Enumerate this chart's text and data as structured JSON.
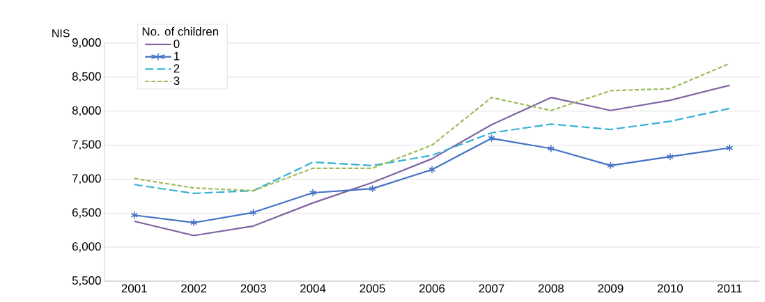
{
  "chart_data": {
    "type": "line",
    "ylabel": "NIS",
    "legend_title": "No. of children",
    "categories": [
      "2001",
      "2002",
      "2003",
      "2004",
      "2005",
      "2006",
      "2007",
      "2008",
      "2009",
      "2010",
      "2011"
    ],
    "series": [
      {
        "name": "0",
        "color": "#8064a2",
        "marker": "none",
        "line_style": "solid",
        "values": [
          6380,
          6170,
          6310,
          6650,
          6950,
          7300,
          7800,
          8200,
          8010,
          8160,
          8380
        ]
      },
      {
        "name": "1",
        "color": "#4472c4",
        "marker": "cross",
        "line_style": "solid",
        "values": [
          6470,
          6360,
          6510,
          6800,
          6860,
          7140,
          7600,
          7450,
          7200,
          7330,
          7460
        ]
      },
      {
        "name": "2",
        "color": "#31b0d5",
        "marker": "none",
        "line_style": "dashed",
        "values": [
          6920,
          6790,
          6830,
          7250,
          7200,
          7350,
          7680,
          7810,
          7730,
          7850,
          8040
        ]
      },
      {
        "name": "3",
        "color": "#9bbb59",
        "marker": "none",
        "line_style": "dotted",
        "values": [
          7010,
          6870,
          6830,
          7160,
          7160,
          7500,
          8200,
          8010,
          8300,
          8330,
          8700
        ]
      }
    ],
    "ylim": [
      5500,
      9000
    ],
    "yticks": [
      {
        "value": 5500,
        "label": "5,500"
      },
      {
        "value": 6000,
        "label": "6,000"
      },
      {
        "value": 6500,
        "label": "6,500"
      },
      {
        "value": 7000,
        "label": "7,000"
      },
      {
        "value": 7500,
        "label": "7,500"
      },
      {
        "value": 8000,
        "label": "8,000"
      },
      {
        "value": 8500,
        "label": "8,500"
      },
      {
        "value": 9000,
        "label": "9,000"
      }
    ],
    "grid": "y",
    "legend": "top left"
  }
}
